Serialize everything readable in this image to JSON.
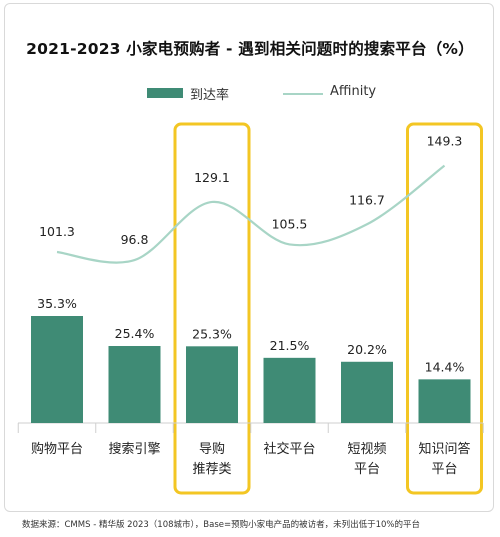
{
  "title": "2021-2023 小家电预购者 - 遇到相关问题时的搜索平台（%）",
  "source_note": "数据来源：CMMS - 精华版 2023（108城市），Base=预购小家电产品的被访者，未列出低于10%的平台",
  "colors": {
    "bar": "#3f8b75",
    "line": "#a8d5c6",
    "highlight": "#f3c623"
  },
  "chart_data": {
    "type": "bar",
    "title": "2021-2023 小家电预购者 - 遇到相关问题时的搜索平台（%）",
    "categories": [
      [
        "购物平台"
      ],
      [
        "搜索引擎"
      ],
      [
        "导购",
        "推荐类"
      ],
      [
        "社交平台"
      ],
      [
        "短视频",
        "平台"
      ],
      [
        "知识问答",
        "平台"
      ]
    ],
    "series": [
      {
        "name": "到达率",
        "kind": "bar",
        "unit": "%",
        "values": [
          35.3,
          25.4,
          25.3,
          21.5,
          20.2,
          14.4
        ]
      },
      {
        "name": "Affinity",
        "kind": "line",
        "values": [
          101.3,
          96.8,
          129.1,
          105.5,
          116.7,
          149.3
        ]
      }
    ],
    "highlighted_categories": [
      2,
      5
    ],
    "legend_position": "top"
  }
}
